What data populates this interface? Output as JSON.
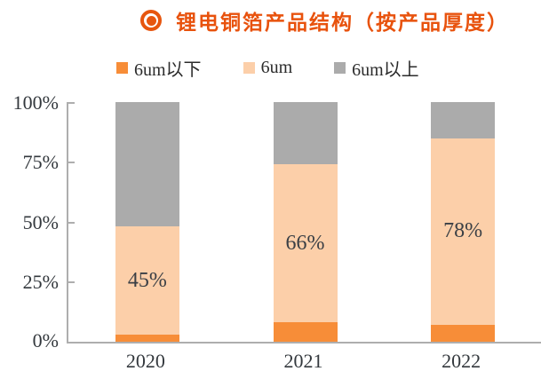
{
  "header": {
    "title": "锂电铜箔产品结构（按产品厚度）"
  },
  "legend": {
    "items": [
      {
        "label": "6um以下",
        "color": "#f78d38"
      },
      {
        "label": "6um",
        "color": "#fccfa9"
      },
      {
        "label": "6um以上",
        "color": "#ababab"
      }
    ]
  },
  "chart_data": {
    "type": "bar",
    "stacked": true,
    "title": "锂电铜箔产品结构（按产品厚度）",
    "categories": [
      "2020",
      "2021",
      "2022"
    ],
    "series": [
      {
        "name": "6um以下",
        "color": "#f78d38",
        "values": [
          3,
          8,
          7
        ]
      },
      {
        "name": "6um",
        "color": "#fccfa9",
        "values": [
          45,
          66,
          78
        ],
        "data_labels": [
          "45%",
          "66%",
          "78%"
        ]
      },
      {
        "name": "6um以上",
        "color": "#ababab",
        "values": [
          52,
          26,
          15
        ]
      }
    ],
    "ylim": [
      0,
      100
    ],
    "ytick_labels": [
      "100%",
      "75%",
      "50%",
      "25%",
      "0%"
    ],
    "grid": false,
    "legend_position": "top"
  },
  "colors": {
    "title": "#e8520d",
    "axis_line": "#aeaeae",
    "axis_text": "#33383d",
    "data_label_text": "#3a3f45"
  }
}
